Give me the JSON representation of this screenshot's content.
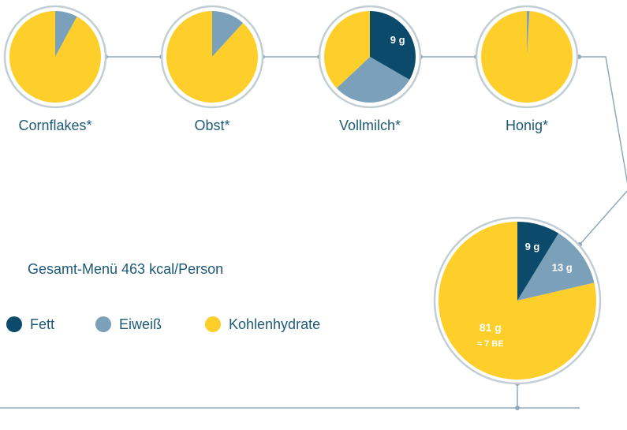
{
  "chart_data": [
    {
      "type": "pie",
      "title": "Cornflakes*",
      "values": [
        0,
        3,
        35
      ]
    },
    {
      "type": "pie",
      "title": "Obst*",
      "values": [
        0,
        2,
        15
      ]
    },
    {
      "type": "pie",
      "title": "Vollmilch*",
      "values": [
        9,
        8,
        10
      ],
      "value_labels": [
        "9 g",
        null,
        null
      ]
    },
    {
      "type": "pie",
      "title": "Honig*",
      "values": [
        0,
        0.2,
        21
      ]
    },
    {
      "type": "pie",
      "title": "Gesamt-Menü 463 kcal/Person",
      "categories": [
        "Fett",
        "Eiweiß",
        "Kohlenhydrate"
      ],
      "colors": [
        "#0b4a6b",
        "#7ba1ba",
        "#fece2b"
      ],
      "values": [
        9,
        13,
        81
      ],
      "value_labels": [
        "9 g",
        "13 g",
        "81 g"
      ],
      "annotation": "≈ 7 BE",
      "legend": "left"
    }
  ]
}
